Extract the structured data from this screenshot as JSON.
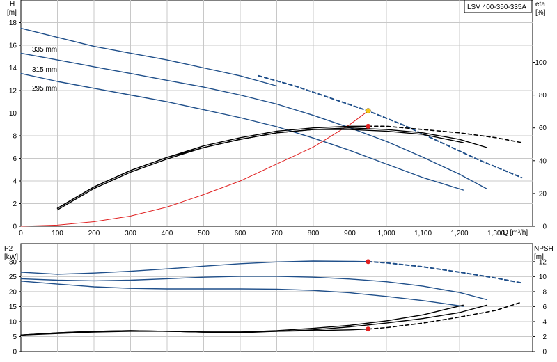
{
  "title_box": "LSV 400-350-335A",
  "chart_data": [
    {
      "type": "line",
      "panel": "top",
      "grid": true,
      "xlabel": "Q [m³/h]",
      "xlim": [
        0,
        1400
      ],
      "x_ticks": [
        "0",
        "100",
        "200",
        "300",
        "400",
        "500",
        "600",
        "700",
        "800",
        "900",
        "1,000",
        "1,100",
        "1,200",
        "1,300"
      ],
      "left_axis": {
        "label_line1": "H",
        "label_line2": "[m]",
        "ylim": [
          0,
          20
        ],
        "ticks": [
          "0",
          "2",
          "4",
          "6",
          "8",
          "10",
          "12",
          "14",
          "16",
          "18"
        ]
      },
      "right_axis": {
        "label_line1": "eta",
        "label_line2": "[%]",
        "ylim": [
          0,
          138
        ],
        "ticks": [
          "0",
          "20",
          "40",
          "60",
          "80",
          "100"
        ]
      },
      "series": [
        {
          "name": "335 mm",
          "axis": "left",
          "color": "#1f4f8a",
          "style": "solid",
          "x": [
            0,
            100,
            200,
            300,
            400,
            500,
            600,
            700
          ],
          "y": [
            17.5,
            16.7,
            15.9,
            15.3,
            14.7,
            14.0,
            13.3,
            12.4
          ]
        },
        {
          "axis": "left",
          "color": "#1f4f8a",
          "style": "dashed",
          "x": [
            650,
            750,
            850,
            950,
            1050,
            1150,
            1250,
            1370
          ],
          "y": [
            13.3,
            12.4,
            11.3,
            10.2,
            8.9,
            7.4,
            5.9,
            4.3
          ]
        },
        {
          "name": "315 mm",
          "axis": "left",
          "color": "#1f4f8a",
          "style": "solid",
          "x": [
            0,
            100,
            200,
            300,
            400,
            500,
            600,
            700,
            800,
            900,
            1000,
            1100,
            1200,
            1275
          ],
          "y": [
            15.3,
            14.7,
            14.1,
            13.5,
            12.9,
            12.3,
            11.6,
            10.8,
            9.8,
            8.7,
            7.5,
            6.1,
            4.6,
            3.3
          ]
        },
        {
          "name": "295 mm",
          "axis": "left",
          "color": "#1f4f8a",
          "style": "solid",
          "x": [
            0,
            100,
            200,
            300,
            400,
            500,
            600,
            700,
            800,
            900,
            1000,
            1100,
            1210
          ],
          "y": [
            13.5,
            12.8,
            12.2,
            11.6,
            11.0,
            10.3,
            9.6,
            8.8,
            7.8,
            6.7,
            5.5,
            4.3,
            3.2
          ]
        },
        {
          "axis": "left",
          "color": "#e02020",
          "style": "solid",
          "x": [
            0,
            100,
            200,
            300,
            400,
            500,
            600,
            700,
            800,
            900,
            950
          ],
          "y": [
            0,
            0.1,
            0.4,
            0.9,
            1.7,
            2.8,
            4.0,
            5.5,
            7.0,
            9.0,
            10.2
          ]
        },
        {
          "axis": "right",
          "color": "#000000",
          "style": "solid",
          "x": [
            100,
            200,
            300,
            400,
            500,
            600,
            700,
            800,
            900,
            950
          ],
          "y": [
            11,
            24,
            34,
            42,
            49,
            54,
            58,
            60,
            61,
            61
          ]
        },
        {
          "axis": "right",
          "color": "#000000",
          "style": "dashed",
          "x": [
            950,
            1000,
            1100,
            1200,
            1300,
            1370
          ],
          "y": [
            61,
            61,
            59,
            57,
            54,
            51
          ]
        },
        {
          "axis": "right",
          "color": "#000000",
          "style": "solid",
          "x": [
            100,
            200,
            300,
            400,
            500,
            600,
            700,
            800,
            900,
            1000,
            1100,
            1200,
            1275
          ],
          "y": [
            10,
            23,
            33,
            41,
            48,
            53,
            57,
            59,
            60,
            59,
            57,
            53,
            48
          ]
        },
        {
          "axis": "right",
          "color": "#000000",
          "style": "solid",
          "x": [
            100,
            200,
            300,
            400,
            500,
            600,
            700,
            800,
            900,
            1000,
            1100,
            1210
          ],
          "y": [
            11,
            24,
            34,
            42,
            48,
            53,
            57,
            59,
            59,
            58,
            56,
            51
          ]
        }
      ],
      "markers": [
        {
          "axis": "left",
          "x": 950,
          "y": 10.2,
          "color": "#f5c518"
        },
        {
          "axis": "right",
          "x": 950,
          "y": 61,
          "color": "#e02020"
        }
      ],
      "annotations": [
        "335 mm",
        "315 mm",
        "295 mm"
      ]
    },
    {
      "type": "line",
      "panel": "bottom",
      "grid": true,
      "xlim": [
        0,
        1400
      ],
      "left_axis": {
        "label_line1": "P2",
        "label_line2": "[kW]",
        "ylim": [
          0,
          36
        ],
        "ticks": [
          "0",
          "5",
          "10",
          "15",
          "20",
          "25",
          "30"
        ]
      },
      "right_axis": {
        "label_line1": "NPSH",
        "label_line2": "[m]",
        "ylim": [
          0,
          14.4
        ],
        "ticks": [
          "0",
          "2",
          "4",
          "6",
          "8",
          "10",
          "12"
        ]
      },
      "series": [
        {
          "axis": "left",
          "color": "#1f4f8a",
          "style": "solid",
          "x": [
            0,
            100,
            200,
            300,
            400,
            500,
            600,
            700,
            800,
            900,
            950
          ],
          "y": [
            26.5,
            25.8,
            26.2,
            26.8,
            27.6,
            28.5,
            29.3,
            29.9,
            30.2,
            30.1,
            30.0
          ]
        },
        {
          "axis": "left",
          "color": "#1f4f8a",
          "style": "dashed",
          "x": [
            950,
            1000,
            1100,
            1200,
            1300,
            1370
          ],
          "y": [
            30.0,
            29.6,
            28.3,
            26.5,
            24.5,
            22.9
          ]
        },
        {
          "axis": "left",
          "color": "#1f4f8a",
          "style": "solid",
          "x": [
            0,
            100,
            200,
            300,
            400,
            500,
            600,
            700,
            800,
            900,
            1000,
            1100,
            1200,
            1275
          ],
          "y": [
            24.3,
            23.8,
            23.6,
            23.8,
            24.3,
            24.8,
            25.1,
            25.1,
            24.8,
            24.2,
            23.3,
            21.8,
            19.7,
            17.3
          ]
        },
        {
          "axis": "left",
          "color": "#1f4f8a",
          "style": "solid",
          "x": [
            0,
            100,
            200,
            300,
            400,
            500,
            600,
            700,
            800,
            900,
            1000,
            1100,
            1210
          ],
          "y": [
            23.5,
            22.5,
            21.6,
            21.1,
            20.9,
            20.9,
            20.9,
            20.8,
            20.4,
            19.6,
            18.4,
            17.0,
            15.1
          ]
        },
        {
          "axis": "right",
          "color": "#000000",
          "style": "solid",
          "x": [
            0,
            100,
            200,
            300,
            400,
            500,
            600,
            700,
            800,
            900,
            950
          ],
          "y": [
            2.2,
            2.4,
            2.6,
            2.7,
            2.7,
            2.6,
            2.6,
            2.7,
            2.8,
            2.9,
            3.0
          ]
        },
        {
          "axis": "right",
          "color": "#000000",
          "style": "dashed",
          "x": [
            950,
            1000,
            1100,
            1200,
            1300,
            1370
          ],
          "y": [
            3.0,
            3.2,
            3.8,
            4.6,
            5.5,
            6.6
          ]
        },
        {
          "axis": "right",
          "color": "#000000",
          "style": "solid",
          "x": [
            0,
            100,
            200,
            300,
            400,
            500,
            600,
            700,
            800,
            900,
            1000,
            1100,
            1200,
            1275
          ],
          "y": [
            2.2,
            2.5,
            2.7,
            2.8,
            2.7,
            2.6,
            2.5,
            2.7,
            2.9,
            3.3,
            3.8,
            4.4,
            5.2,
            6.2
          ]
        },
        {
          "axis": "right",
          "color": "#000000",
          "style": "solid",
          "x": [
            0,
            100,
            200,
            300,
            400,
            500,
            600,
            700,
            800,
            900,
            1000,
            1100,
            1210
          ],
          "y": [
            2.2,
            2.5,
            2.7,
            2.8,
            2.7,
            2.6,
            2.6,
            2.8,
            3.1,
            3.5,
            4.1,
            4.9,
            6.2
          ]
        }
      ],
      "markers": [
        {
          "axis": "left",
          "x": 950,
          "y": 30.0,
          "color": "#e02020"
        },
        {
          "axis": "right",
          "x": 950,
          "y": 3.0,
          "color": "#e02020"
        }
      ]
    }
  ]
}
